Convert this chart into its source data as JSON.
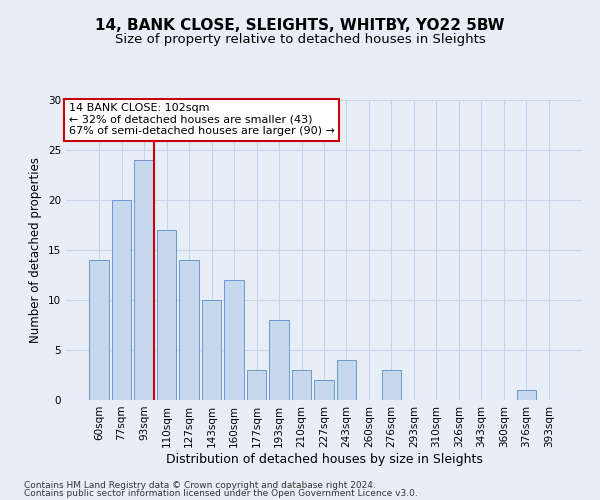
{
  "title1": "14, BANK CLOSE, SLEIGHTS, WHITBY, YO22 5BW",
  "title2": "Size of property relative to detached houses in Sleights",
  "xlabel": "Distribution of detached houses by size in Sleights",
  "ylabel": "Number of detached properties",
  "categories": [
    "60sqm",
    "77sqm",
    "93sqm",
    "110sqm",
    "127sqm",
    "143sqm",
    "160sqm",
    "177sqm",
    "193sqm",
    "210sqm",
    "227sqm",
    "243sqm",
    "260sqm",
    "276sqm",
    "293sqm",
    "310sqm",
    "326sqm",
    "343sqm",
    "360sqm",
    "376sqm",
    "393sqm"
  ],
  "values": [
    14,
    20,
    24,
    17,
    14,
    10,
    12,
    3,
    8,
    3,
    2,
    4,
    0,
    3,
    0,
    0,
    0,
    0,
    0,
    1,
    0
  ],
  "bar_color": "#c5d8ed",
  "bar_edge_color": "#5b8dc8",
  "red_line_index": 2,
  "annotation_text": "14 BANK CLOSE: 102sqm\n← 32% of detached houses are smaller (43)\n67% of semi-detached houses are larger (90) →",
  "annotation_box_color": "white",
  "annotation_box_edge_color": "#cc0000",
  "red_line_color": "#cc0000",
  "ylim": [
    0,
    30
  ],
  "yticks": [
    0,
    5,
    10,
    15,
    20,
    25,
    30
  ],
  "grid_color": "#c8d4e8",
  "bg_color": "#e8eef8",
  "footnote1": "Contains HM Land Registry data © Crown copyright and database right 2024.",
  "footnote2": "Contains public sector information licensed under the Open Government Licence v3.0.",
  "title1_fontsize": 11,
  "title2_fontsize": 9.5,
  "xlabel_fontsize": 9,
  "ylabel_fontsize": 8.5,
  "tick_fontsize": 7.5,
  "annot_fontsize": 8
}
